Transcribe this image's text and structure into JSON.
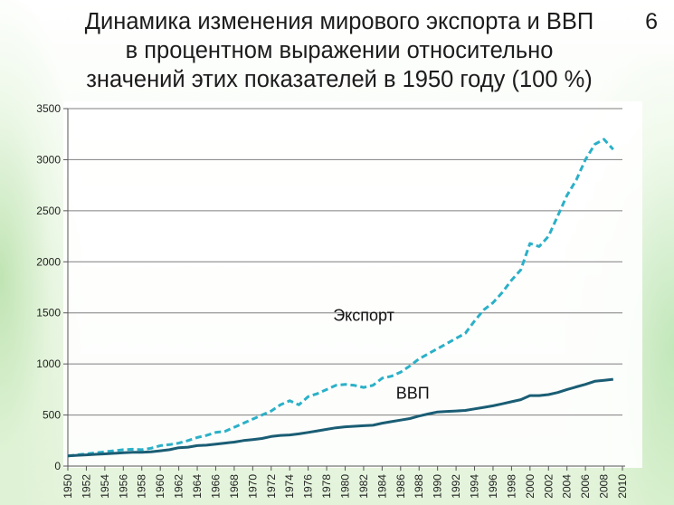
{
  "slide": {
    "title_lines": [
      "Динамика изменения мирового экспорта и ВВП",
      "в процентном выражении относительно",
      "значений этих показателей в 1950 году (100 %)"
    ],
    "number": "6"
  },
  "chart_data": {
    "type": "line",
    "title": "Динамика изменения мирового экспорта и ВВП в процентном выражении относительно значений этих показателей в 1950 году (100 %)",
    "ylim": [
      0,
      3500
    ],
    "yticks": [
      0,
      500,
      1000,
      1500,
      2000,
      2500,
      3000,
      3500
    ],
    "xlim": [
      1950,
      2010
    ],
    "xticks": [
      1950,
      1952,
      1954,
      1956,
      1958,
      1960,
      1962,
      1964,
      1966,
      1968,
      1970,
      1972,
      1974,
      1976,
      1978,
      1980,
      1982,
      1984,
      1986,
      1988,
      1990,
      1992,
      1994,
      1996,
      1998,
      2000,
      2002,
      2004,
      2006,
      2008,
      2010
    ],
    "grid": "horizontal",
    "colors": {
      "export": "#2bb0c8",
      "gdp": "#1a5d74",
      "grid": "#7f7f7f"
    },
    "series": [
      {
        "name": "Экспорт",
        "style": "dashed",
        "x": [
          1950,
          1951,
          1952,
          1953,
          1954,
          1955,
          1956,
          1957,
          1958,
          1959,
          1960,
          1961,
          1962,
          1963,
          1964,
          1965,
          1966,
          1967,
          1968,
          1969,
          1970,
          1971,
          1972,
          1973,
          1974,
          1975,
          1976,
          1977,
          1978,
          1979,
          1980,
          1981,
          1982,
          1983,
          1984,
          1985,
          1986,
          1987,
          1988,
          1989,
          1990,
          1991,
          1992,
          1993,
          1994,
          1995,
          1996,
          1997,
          1998,
          1999,
          2000,
          2001,
          2002,
          2003,
          2004,
          2005,
          2006,
          2007,
          2008,
          2009
        ],
        "values": [
          100,
          110,
          120,
          130,
          140,
          150,
          160,
          165,
          160,
          175,
          200,
          210,
          225,
          250,
          280,
          300,
          330,
          340,
          380,
          420,
          460,
          500,
          540,
          600,
          640,
          600,
          680,
          710,
          750,
          790,
          800,
          790,
          770,
          790,
          860,
          880,
          920,
          980,
          1050,
          1100,
          1150,
          1200,
          1250,
          1300,
          1420,
          1530,
          1600,
          1700,
          1820,
          1920,
          2180,
          2150,
          2250,
          2450,
          2650,
          2800,
          3000,
          3150,
          3200,
          3100
        ]
      },
      {
        "name": "ВВП",
        "style": "solid",
        "x": [
          1950,
          1951,
          1952,
          1953,
          1954,
          1955,
          1956,
          1957,
          1958,
          1959,
          1960,
          1961,
          1962,
          1963,
          1964,
          1965,
          1966,
          1967,
          1968,
          1969,
          1970,
          1971,
          1972,
          1973,
          1974,
          1975,
          1976,
          1977,
          1978,
          1979,
          1980,
          1981,
          1982,
          1983,
          1984,
          1985,
          1986,
          1987,
          1988,
          1989,
          1990,
          1991,
          1992,
          1993,
          1994,
          1995,
          1996,
          1997,
          1998,
          1999,
          2000,
          2001,
          2002,
          2003,
          2004,
          2005,
          2006,
          2007,
          2008,
          2009
        ],
        "values": [
          100,
          105,
          110,
          115,
          120,
          125,
          130,
          135,
          135,
          140,
          150,
          160,
          180,
          185,
          200,
          205,
          215,
          225,
          235,
          250,
          260,
          270,
          290,
          300,
          305,
          315,
          330,
          345,
          360,
          375,
          385,
          390,
          395,
          400,
          420,
          435,
          450,
          465,
          490,
          510,
          530,
          535,
          540,
          545,
          560,
          575,
          590,
          610,
          630,
          650,
          690,
          690,
          700,
          720,
          750,
          775,
          800,
          830,
          840,
          850
        ]
      }
    ],
    "labels": [
      {
        "series": "Экспорт",
        "text": "Экспорт"
      },
      {
        "series": "ВВП",
        "text": "ВВП"
      }
    ]
  }
}
